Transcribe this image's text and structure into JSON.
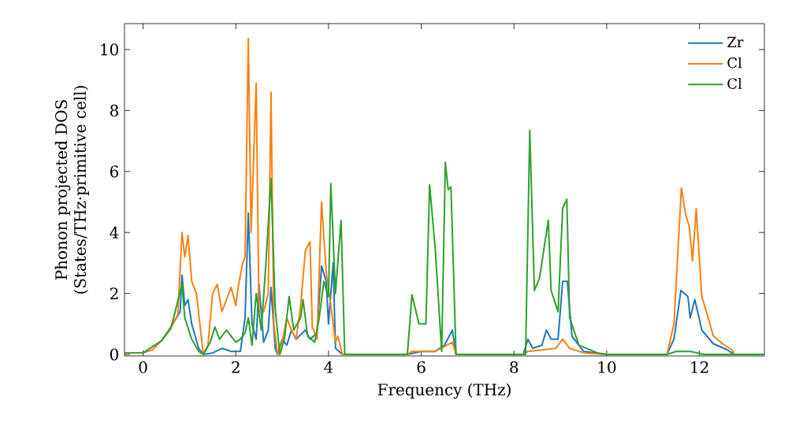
{
  "chart_data": {
    "type": "line",
    "xlabel": "Frequency (THz)",
    "ylabel": [
      "Phonon projected DOS",
      "(States/THz·primitive cell)"
    ],
    "xlim": [
      -0.4,
      13.4
    ],
    "ylim": [
      -0.05,
      10.85
    ],
    "xticks": [
      0,
      2,
      4,
      6,
      8,
      10,
      12
    ],
    "yticks": [
      0,
      2,
      4,
      6,
      8,
      10
    ],
    "legend": "top right",
    "grid": false,
    "marker": "none",
    "line_style": "solid",
    "series": [
      {
        "name": "Zr",
        "color": "#1f77b4",
        "x": [
          0.4,
          0.6,
          0.8,
          0.84,
          0.9,
          0.97,
          1.05,
          1.2,
          1.3,
          1.5,
          1.7,
          1.9,
          2.1,
          2.2,
          2.27,
          2.35,
          2.44,
          2.5,
          2.6,
          2.7,
          2.76,
          2.85,
          2.9,
          3.0,
          3.1,
          3.2,
          3.3,
          3.5,
          3.6,
          3.75,
          3.85,
          3.95,
          4.0,
          4.1,
          4.15,
          4.3,
          5.7,
          6.0,
          6.3,
          6.5,
          6.67,
          6.75,
          8.2,
          8.3,
          8.4,
          8.6,
          8.7,
          8.8,
          8.95,
          9.05,
          9.15,
          9.25,
          9.5,
          10,
          11.3,
          11.45,
          11.6,
          11.75,
          11.8,
          11.9,
          12.05,
          12.3,
          12.6,
          12.75,
          13.4
        ],
        "values": [
          0.45,
          0.9,
          1.4,
          2.6,
          1.6,
          1.8,
          1.0,
          0.2,
          0.0,
          0.05,
          0.2,
          0.1,
          0.1,
          1.2,
          4.64,
          1.0,
          0.5,
          2.3,
          0.4,
          0.8,
          2.2,
          0.2,
          0.0,
          0.5,
          0.3,
          0.8,
          0.5,
          0.8,
          0.5,
          0.7,
          2.9,
          2.4,
          1.0,
          3.0,
          0.2,
          0.0,
          0.0,
          0.1,
          0.1,
          0.3,
          0.8,
          0.0,
          0.0,
          0.5,
          0.2,
          0.3,
          0.8,
          0.5,
          0.5,
          2.4,
          2.4,
          0.6,
          0.1,
          0.0,
          0.0,
          0.5,
          2.1,
          1.9,
          1.2,
          1.8,
          0.8,
          0.35,
          0.15,
          0.0,
          0.0
        ]
      },
      {
        "name": "Cl",
        "color": "#ff7f0e",
        "x": [
          -0.4,
          0,
          0.2,
          0.4,
          0.6,
          0.75,
          0.84,
          0.9,
          0.97,
          1.05,
          1.15,
          1.3,
          1.4,
          1.5,
          1.6,
          1.7,
          1.8,
          1.9,
          2.0,
          2.05,
          2.1,
          2.15,
          2.2,
          2.27,
          2.33,
          2.44,
          2.5,
          2.6,
          2.7,
          2.76,
          2.82,
          2.9,
          3.0,
          3.1,
          3.2,
          3.3,
          3.4,
          3.5,
          3.6,
          3.65,
          3.75,
          3.85,
          3.95,
          4.05,
          4.15,
          4.2,
          4.3,
          5.7,
          5.8,
          6.0,
          6.3,
          6.67,
          6.75,
          8.2,
          8.3,
          8.6,
          8.9,
          9.05,
          9.2,
          9.5,
          10,
          11.3,
          11.45,
          11.61,
          11.7,
          11.78,
          11.85,
          11.93,
          12.05,
          12.15,
          12.3,
          12.5,
          12.7,
          12.75,
          13.4
        ],
        "values": [
          0.05,
          0.05,
          0.15,
          0.45,
          0.9,
          1.3,
          4.0,
          3.2,
          3.9,
          2.4,
          2.0,
          0.0,
          0.3,
          2.0,
          2.3,
          1.4,
          1.8,
          2.2,
          1.6,
          2.2,
          2.6,
          3.0,
          3.2,
          10.36,
          4.0,
          8.9,
          1.4,
          1.4,
          2.0,
          8.6,
          1.0,
          0.0,
          0.4,
          1.2,
          0.8,
          0.5,
          1.6,
          3.4,
          3.7,
          0.9,
          0.5,
          5.0,
          2.7,
          1.6,
          0.4,
          0.6,
          0.0,
          0.0,
          0.1,
          0.1,
          0.1,
          0.4,
          0.0,
          0.0,
          0.1,
          0.15,
          0.2,
          0.5,
          0.2,
          0.05,
          0.0,
          0.0,
          1.0,
          5.46,
          4.6,
          4.2,
          3.06,
          4.78,
          1.9,
          1.4,
          0.6,
          0.35,
          0.15,
          0.0,
          0.0
        ]
      },
      {
        "name": "Cl",
        "color": "#2ca02c",
        "x": [
          -0.4,
          0,
          0.4,
          0.6,
          0.84,
          0.9,
          1.05,
          1.2,
          1.3,
          1.45,
          1.55,
          1.65,
          1.8,
          1.9,
          2.0,
          2.1,
          2.2,
          2.27,
          2.35,
          2.44,
          2.55,
          2.65,
          2.76,
          2.85,
          2.95,
          3.05,
          3.15,
          3.25,
          3.4,
          3.45,
          3.55,
          3.7,
          3.8,
          3.9,
          4.0,
          4.05,
          4.15,
          4.27,
          4.35,
          5.7,
          5.8,
          5.95,
          6.1,
          6.18,
          6.3,
          6.44,
          6.52,
          6.58,
          6.64,
          6.75,
          8.25,
          8.34,
          8.44,
          8.55,
          8.74,
          8.8,
          8.95,
          9.05,
          9.14,
          9.2,
          9.4,
          9.8,
          10.0,
          11.3,
          11.5,
          11.8,
          12.1,
          13.4
        ],
        "values": [
          0.05,
          0.05,
          0.45,
          0.85,
          2.3,
          1.2,
          0.5,
          0.1,
          0.0,
          0.4,
          0.9,
          0.5,
          0.8,
          0.6,
          0.4,
          0.5,
          0.7,
          1.2,
          0.3,
          2.0,
          0.8,
          3.0,
          5.77,
          1.5,
          0.0,
          0.5,
          1.9,
          0.8,
          1.2,
          1.8,
          0.6,
          0.4,
          1.2,
          2.4,
          1.9,
          5.6,
          2.0,
          4.4,
          0.0,
          0.0,
          1.96,
          1.0,
          1.0,
          5.56,
          3.5,
          0.1,
          6.3,
          5.4,
          5.5,
          0.0,
          0.0,
          7.35,
          2.1,
          2.5,
          4.4,
          2.1,
          1.4,
          4.8,
          5.09,
          1.2,
          0.3,
          0.05,
          0.0,
          0.0,
          0.1,
          0.1,
          0.0,
          0.0
        ]
      }
    ]
  }
}
